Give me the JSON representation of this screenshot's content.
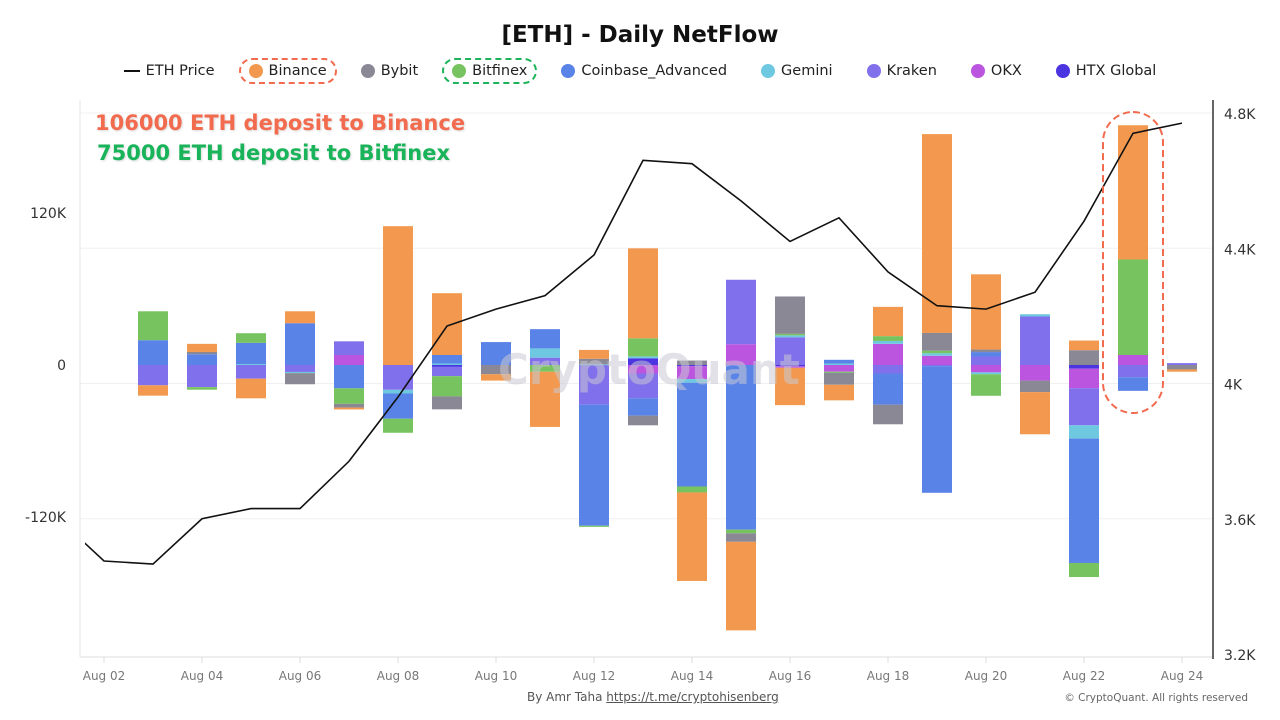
{
  "title": "[ETH] - Daily NetFlow",
  "legend": [
    {
      "key": "price",
      "label": "ETH Price",
      "color": "#111111",
      "type": "line"
    },
    {
      "key": "binance",
      "label": "Binance",
      "color": "#f2994f",
      "highlight": "#f26b4f"
    },
    {
      "key": "bybit",
      "label": "Bybit",
      "color": "#8a8895"
    },
    {
      "key": "bitfinex",
      "label": "Bitfinex",
      "color": "#76c35f",
      "highlight": "#1db35a"
    },
    {
      "key": "coinbase",
      "label": "Coinbase_Advanced",
      "color": "#5a83e8"
    },
    {
      "key": "gemini",
      "label": "Gemini",
      "color": "#6ec9e0"
    },
    {
      "key": "kraken",
      "label": "Kraken",
      "color": "#8070eb"
    },
    {
      "key": "okx",
      "label": "OKX",
      "color": "#bb55e0"
    },
    {
      "key": "htx",
      "label": "HTX Global",
      "color": "#4b35e0"
    }
  ],
  "annotations": {
    "binance_text": "106000 ETH deposit to Binance",
    "binance_color": "#f26b4f",
    "bitfinex_text": "75000 ETH deposit to Bitfinex",
    "bitfinex_color": "#19b45a",
    "highlighted_date": "Aug 23"
  },
  "watermark": "CryptoQuant",
  "footer": {
    "by": "By Amr Taha",
    "link": "https://t.me/cryptohisenberg",
    "copyright": "© CryptoQuant. All rights reserved"
  },
  "chart_data": {
    "type": "bar",
    "stacked": true,
    "title": "[ETH] - Daily NetFlow",
    "dates": [
      "Aug 01",
      "Aug 02",
      "Aug 03",
      "Aug 04",
      "Aug 05",
      "Aug 06",
      "Aug 07",
      "Aug 08",
      "Aug 09",
      "Aug 10",
      "Aug 11",
      "Aug 12",
      "Aug 13",
      "Aug 14",
      "Aug 15",
      "Aug 16",
      "Aug 17",
      "Aug 18",
      "Aug 19",
      "Aug 20",
      "Aug 21",
      "Aug 22",
      "Aug 23",
      "Aug 24"
    ],
    "x_tick_labels": [
      "Aug 02",
      "Aug 04",
      "Aug 06",
      "Aug 08",
      "Aug 10",
      "Aug 12",
      "Aug 14",
      "Aug 16",
      "Aug 18",
      "Aug 20",
      "Aug 22",
      "Aug 24"
    ],
    "left_axis": {
      "ticks": [
        120000,
        0,
        -120000
      ],
      "tick_labels": [
        "120K",
        "0",
        "-120K"
      ]
    },
    "right_axis": {
      "range": [
        3200,
        4800
      ],
      "ticks": [
        4800,
        4400,
        4000,
        3600,
        3200
      ],
      "tick_labels": [
        "4.8K",
        "4.4K",
        "4K",
        "3.6K",
        "3.2K"
      ]
    },
    "grid": true,
    "legend_position": "top",
    "series": [
      {
        "key": "htx",
        "name": "HTX Global",
        "values": [
          0,
          0,
          0,
          0,
          0,
          0,
          0,
          0,
          -1500,
          0,
          0,
          0,
          5300,
          -900,
          0,
          -1000,
          0,
          0,
          0,
          0,
          0,
          -2900,
          0,
          0
        ]
      },
      {
        "key": "okx",
        "name": "OKX",
        "values": [
          0,
          0,
          0,
          0,
          0,
          0,
          7900,
          0,
          0,
          0,
          0,
          0,
          -6700,
          -10200,
          16400,
          -1200,
          -5300,
          16700,
          7300,
          -5800,
          -12300,
          -15500,
          7900,
          0
        ]
      },
      {
        "key": "kraken",
        "name": "Kraken",
        "values": [
          0,
          0,
          -16000,
          -17500,
          -10800,
          -5500,
          10800,
          -19600,
          -7300,
          0,
          5800,
          -31300,
          -19600,
          0,
          50900,
          21900,
          0,
          -6700,
          -900,
          6700,
          38300,
          -29200,
          -9600,
          1500
        ]
      },
      {
        "key": "gemini",
        "name": "Gemini",
        "values": [
          0,
          0,
          0,
          0,
          800,
          -900,
          0,
          -2900,
          1200,
          0,
          7300,
          500,
          1500,
          -2900,
          0,
          1500,
          1200,
          2300,
          2000,
          -1500,
          1800,
          -10500,
          0,
          0
        ]
      },
      {
        "key": "coinbase",
        "name": "Coinbase_Advanced",
        "values": [
          0,
          0,
          19600,
          8500,
          16700,
          33000,
          -18400,
          -19900,
          6700,
          18100,
          15200,
          -95600,
          -13700,
          -81900,
          -130000,
          0,
          2900,
          -24600,
          -100000,
          3500,
          0,
          -98200,
          -10800,
          0
        ]
      },
      {
        "key": "bitfinex",
        "name": "Bitfinex",
        "values": [
          0,
          0,
          22800,
          -2000,
          7600,
          0,
          -12300,
          -11100,
          -16000,
          0,
          -5300,
          -900,
          14300,
          -4700,
          -2900,
          1200,
          -900,
          3800,
          2000,
          -17000,
          0,
          -11100,
          75400,
          0
        ]
      },
      {
        "key": "bybit",
        "name": "Bybit",
        "values": [
          0,
          0,
          0,
          1800,
          0,
          -8800,
          -2900,
          0,
          -10200,
          -7300,
          0,
          4400,
          -7600,
          3500,
          -6700,
          29500,
          -9400,
          -15500,
          14000,
          2000,
          -9100,
          11700,
          0,
          -3500
        ]
      },
      {
        "key": "binance",
        "name": "Binance",
        "values": [
          0,
          0,
          -8200,
          6400,
          -15500,
          9400,
          -1500,
          109600,
          48800,
          -5000,
          -43600,
          7000,
          71000,
          -69900,
          -69900,
          -29500,
          -12300,
          23100,
          157000,
          59400,
          -33300,
          7600,
          106000,
          -1800
        ]
      }
    ],
    "line_series": {
      "key": "price",
      "name": "ETH Price",
      "axis": "right",
      "values": [
        3610,
        3475,
        3466,
        3600,
        3630,
        3630,
        3770,
        3960,
        4170,
        4220,
        4260,
        4380,
        4660,
        4650,
        4540,
        4420,
        4490,
        4330,
        4230,
        4220,
        4270,
        4480,
        4740,
        4770
      ]
    }
  }
}
